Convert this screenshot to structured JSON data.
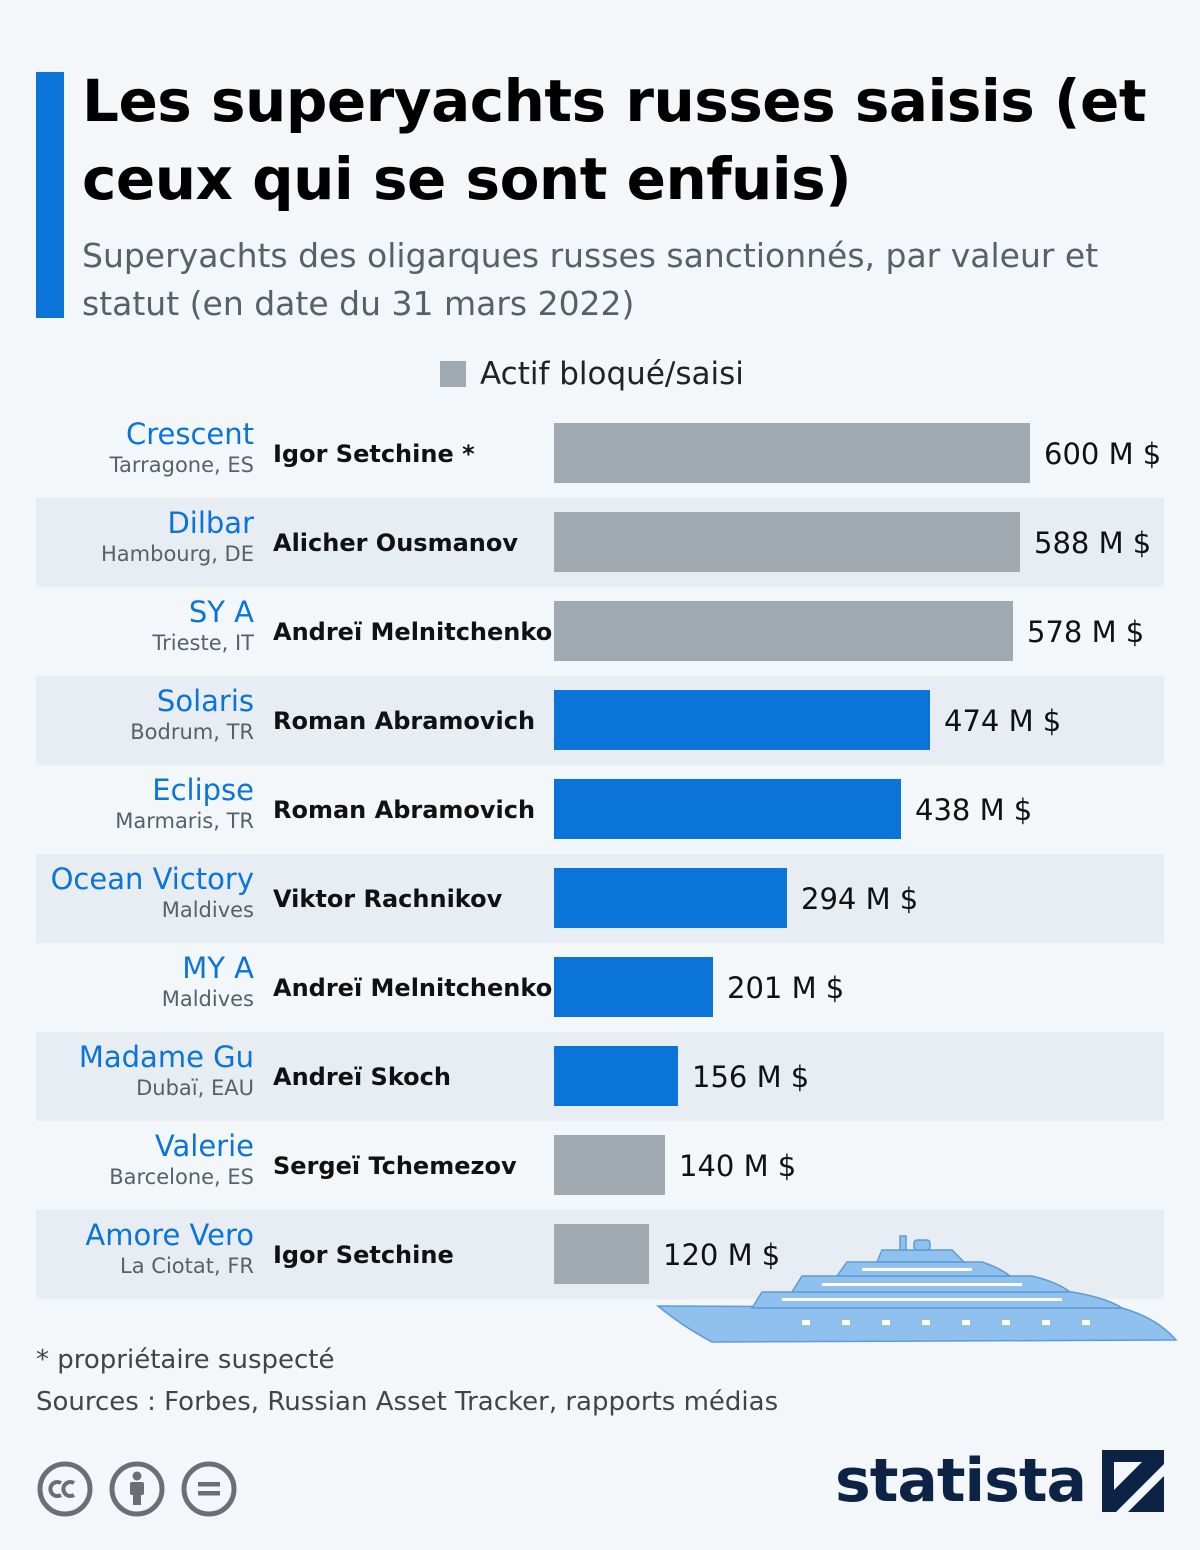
{
  "header": {
    "title": "Les superyachts russes saisis (et ceux qui se sont enfuis)",
    "subtitle": "Superyachts des oligarques russes sanctionnés, par valeur et statut (en date du 31 mars 2022)"
  },
  "legend": {
    "label": "Actif bloqué/saisi",
    "color": "#a1a9b1"
  },
  "colors": {
    "seized": "#a1a9b1",
    "other": "#0a74d8",
    "accent": "#0a74d8",
    "yacht_name": "#0a74d8",
    "brand": "#0c2346",
    "illustration": "#8fc0ee"
  },
  "chart_data": {
    "type": "bar",
    "orientation": "horizontal",
    "title": "Les superyachts russes saisis (et ceux qui se sont enfuis)",
    "subtitle": "Superyachts des oligarques russes sanctionnés, par valeur et statut (en date du 31 mars 2022)",
    "unit": "M $",
    "xlim": [
      0,
      600
    ],
    "grid": false,
    "legend_position": "top",
    "rows": [
      {
        "yacht": "Crescent",
        "location": "Tarragone, ES",
        "owner": "Igor Setchine *",
        "value": 600,
        "value_label": "600 M $",
        "seized": true
      },
      {
        "yacht": "Dilbar",
        "location": "Hambourg, DE",
        "owner": "Alicher Ousmanov",
        "value": 588,
        "value_label": "588 M $",
        "seized": true
      },
      {
        "yacht": "SY A",
        "location": "Trieste, IT",
        "owner": "Andreï Melnitchenko",
        "value": 578,
        "value_label": "578 M $",
        "seized": true
      },
      {
        "yacht": "Solaris",
        "location": "Bodrum, TR",
        "owner": "Roman Abramovich",
        "value": 474,
        "value_label": "474 M $",
        "seized": false
      },
      {
        "yacht": "Eclipse",
        "location": "Marmaris, TR",
        "owner": "Roman Abramovich",
        "value": 438,
        "value_label": "438 M $",
        "seized": false
      },
      {
        "yacht": "Ocean Victory",
        "location": "Maldives",
        "owner": "Viktor Rachnikov",
        "value": 294,
        "value_label": "294 M $",
        "seized": false
      },
      {
        "yacht": "MY A",
        "location": "Maldives",
        "owner": "Andreï Melnitchenko",
        "value": 201,
        "value_label": "201 M $",
        "seized": false
      },
      {
        "yacht": "Madame Gu",
        "location": "Dubaï, EAU",
        "owner": "Andreï Skoch",
        "value": 156,
        "value_label": "156 M $",
        "seized": false
      },
      {
        "yacht": "Valerie",
        "location": "Barcelone, ES",
        "owner": "Sergeï Tchemezov",
        "value": 140,
        "value_label": "140 M $",
        "seized": true
      },
      {
        "yacht": "Amore Vero",
        "location": "La Ciotat, FR",
        "owner": "Igor Setchine",
        "value": 120,
        "value_label": "120 M $",
        "seized": true
      }
    ]
  },
  "footer": {
    "footnote": "* propriétaire suspecté",
    "sources": "Sources : Forbes, Russian Asset Tracker, rapports médias",
    "brand": "statista",
    "license_icons": [
      "cc-icon",
      "attribution-icon",
      "no-derivatives-icon"
    ]
  }
}
